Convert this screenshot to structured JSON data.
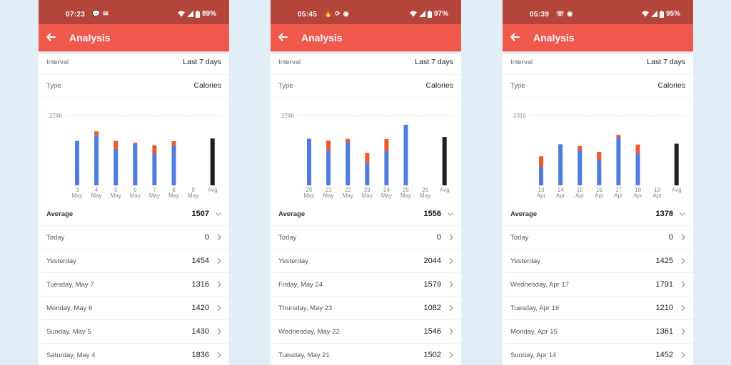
{
  "screens": [
    {
      "status": {
        "time": "07:23",
        "left_icons": [
          "chat-icon",
          "mail-icon"
        ],
        "battery": "89%"
      },
      "appbar": {
        "title": "Analysis"
      },
      "interval": {
        "label": "Interval",
        "value": "Last 7 days"
      },
      "type": {
        "label": "Type",
        "value": "Calories"
      },
      "chart_data": {
        "type": "bar",
        "stacked": true,
        "max_label": "2246",
        "ylim": [
          0,
          2246
        ],
        "categories": [
          [
            "3",
            "May"
          ],
          [
            "4",
            "May"
          ],
          [
            "5",
            "May"
          ],
          [
            "6",
            "May"
          ],
          [
            "7",
            "May"
          ],
          [
            "8",
            "May"
          ],
          [
            "9",
            "May"
          ],
          [
            "",
            "Avg"
          ]
        ],
        "series": [
          {
            "color": "#4f7ddf",
            "values": [
              1430,
              1600,
              1175,
              1320,
              1020,
              1270,
              0,
              0
            ]
          },
          {
            "color": "#f0582d",
            "values": [
              0,
              136,
              255,
              50,
              270,
              150,
              0,
              0
            ]
          },
          {
            "color": "#1f1f1f",
            "values": [
              0,
              0,
              0,
              0,
              0,
              0,
              0,
              1507
            ]
          }
        ]
      },
      "average": {
        "label": "Average",
        "value": "1507"
      },
      "days": [
        {
          "label": "Today",
          "value": "0"
        },
        {
          "label": "Yesterday",
          "value": "1454"
        },
        {
          "label": "Tuesday, May 7",
          "value": "1316"
        },
        {
          "label": "Monday, May 6",
          "value": "1420"
        },
        {
          "label": "Sunday, May 5",
          "value": "1430"
        },
        {
          "label": "Saturday, May 4",
          "value": "1836"
        }
      ]
    },
    {
      "status": {
        "time": "05:45",
        "left_icons": [
          "flame-icon",
          "sync-icon",
          "app-icon"
        ],
        "battery": "97%"
      },
      "appbar": {
        "title": "Analysis"
      },
      "interval": {
        "label": "Interval",
        "value": "Last 7 days"
      },
      "type": {
        "label": "Type",
        "value": "Calories"
      },
      "chart_data": {
        "type": "bar",
        "stacked": true,
        "max_label": "2246",
        "ylim": [
          0,
          2246
        ],
        "categories": [
          [
            "20",
            "May"
          ],
          [
            "21",
            "May"
          ],
          [
            "22",
            "May"
          ],
          [
            "23",
            "May"
          ],
          [
            "24",
            "May"
          ],
          [
            "25",
            "May"
          ],
          [
            "26",
            "May"
          ],
          [
            "",
            "Avg"
          ]
        ],
        "series": [
          {
            "color": "#4f7ddf",
            "values": [
              1500,
              1120,
              1385,
              720,
              1100,
              1950,
              0,
              0
            ]
          },
          {
            "color": "#f0582d",
            "values": [
              0,
              320,
              110,
              320,
              390,
              0,
              0,
              0
            ]
          },
          {
            "color": "#1f1f1f",
            "values": [
              0,
              0,
              0,
              0,
              0,
              0,
              0,
              1556
            ]
          }
        ]
      },
      "average": {
        "label": "Average",
        "value": "1556"
      },
      "days": [
        {
          "label": "Today",
          "value": "0"
        },
        {
          "label": "Yesterday",
          "value": "2044"
        },
        {
          "label": "Friday, May 24",
          "value": "1579"
        },
        {
          "label": "Thursday, May 23",
          "value": "1082"
        },
        {
          "label": "Wednesday, May 22",
          "value": "1546"
        },
        {
          "label": "Tuesday, May 21",
          "value": "1502"
        }
      ]
    },
    {
      "status": {
        "time": "05:39",
        "left_icons": [
          "whatsapp-icon",
          "app-icon"
        ],
        "battery": "95%"
      },
      "appbar": {
        "title": "Analysis"
      },
      "interval": {
        "label": "Interval",
        "value": "Last 7 days"
      },
      "type": {
        "label": "Type",
        "value": "Calories"
      },
      "chart_data": {
        "type": "bar",
        "stacked": true,
        "max_label": "2310",
        "ylim": [
          0,
          2310
        ],
        "categories": [
          [
            "13",
            "Apr"
          ],
          [
            "14",
            "Apr"
          ],
          [
            "15",
            "Apr"
          ],
          [
            "16",
            "Apr"
          ],
          [
            "17",
            "Apr"
          ],
          [
            "18",
            "Apr"
          ],
          [
            "19",
            "Apr"
          ],
          [
            "",
            "Avg"
          ]
        ],
        "series": [
          {
            "color": "#4f7ddf",
            "values": [
              600,
              1360,
              1160,
              830,
              1580,
              1050,
              0,
              0
            ]
          },
          {
            "color": "#f0582d",
            "values": [
              360,
              0,
              140,
              280,
              90,
              300,
              0,
              0
            ]
          },
          {
            "color": "#1f1f1f",
            "values": [
              0,
              0,
              0,
              0,
              0,
              0,
              0,
              1378
            ]
          }
        ]
      },
      "average": {
        "label": "Average",
        "value": "1378"
      },
      "days": [
        {
          "label": "Today",
          "value": "0"
        },
        {
          "label": "Yesterday",
          "value": "1425"
        },
        {
          "label": "Wednesday, Apr 17",
          "value": "1791"
        },
        {
          "label": "Tuesday, Apr 16",
          "value": "1210"
        },
        {
          "label": "Monday, Apr 15",
          "value": "1361"
        },
        {
          "label": "Sunday, Apr 14",
          "value": "1452"
        }
      ]
    }
  ]
}
